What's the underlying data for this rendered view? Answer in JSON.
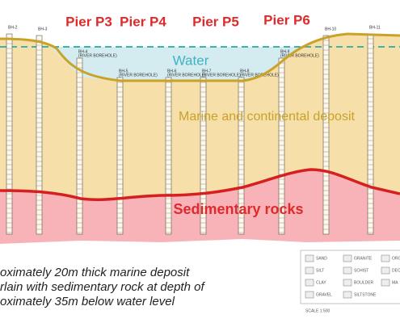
{
  "pier_labels": [
    "Pier P3",
    "Pier P4",
    "Pier P5",
    "Pier P6"
  ],
  "layers": {
    "water": "Water",
    "deposit": "Marine and continental deposit",
    "rock": "Sedimentary rocks"
  },
  "boreholes": [
    "BH-2",
    "BH-3",
    "BH-4",
    "BH-5",
    "BH-6",
    "BH-7",
    "BH-8",
    "BH-9",
    "BH-10",
    "BH-11"
  ],
  "borehole_note": "(RIVER BOREHOLE)",
  "caption": [
    "oximately 20m thick marine deposit",
    "rlain with sedimentary rock at depth of",
    "oximately 35m below water level"
  ],
  "legend": {
    "items": [
      [
        "SAND",
        "GRANITE",
        "ORG"
      ],
      [
        "SILT",
        "SCHIST",
        "DEC"
      ],
      [
        "CLAY",
        "BOULDER",
        "MA"
      ],
      [
        "GRAVEL",
        "SILTSTONE",
        null
      ]
    ],
    "scale": "SCALE 1:500"
  }
}
